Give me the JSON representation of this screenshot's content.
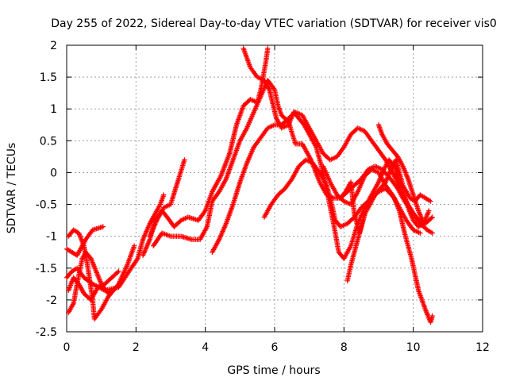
{
  "chart_data": {
    "type": "scatter",
    "title": "Day 255 of 2022, Sidereal Day-to-day VTEC variation (SDTVAR) for receiver vis0",
    "xlabel": "GPS time / hours",
    "ylabel": "SDTVAR / TECUs",
    "xlim": [
      0,
      12
    ],
    "ylim": [
      -2.5,
      2
    ],
    "xticks": [
      "0",
      "2",
      "4",
      "6",
      "8",
      "10",
      "12"
    ],
    "yticks": [
      "-2.5",
      "-2",
      "-1.5",
      "-1",
      "-0.5",
      "0",
      "0.5",
      "1",
      "1.5",
      "2"
    ],
    "grid": true,
    "marker": "+",
    "color": "#ff0000",
    "series": [
      {
        "points": [
          [
            0.0,
            -1.2
          ],
          [
            0.3,
            -1.3
          ],
          [
            0.55,
            -1.05
          ],
          [
            0.75,
            -0.9
          ],
          [
            1.05,
            -0.85
          ]
        ]
      },
      {
        "points": [
          [
            0.0,
            -1.65
          ],
          [
            0.15,
            -1.55
          ],
          [
            0.3,
            -1.5
          ],
          [
            0.5,
            -1.65
          ],
          [
            0.75,
            -1.75
          ],
          [
            1.1,
            -1.85
          ],
          [
            1.5,
            -1.8
          ],
          [
            1.8,
            -1.55
          ],
          [
            2.05,
            -1.35
          ],
          [
            2.2,
            -1.05
          ],
          [
            2.4,
            -0.8
          ],
          [
            2.55,
            -0.65
          ],
          [
            2.7,
            -0.5
          ],
          [
            2.8,
            -0.35
          ]
        ]
      },
      {
        "points": [
          [
            0.05,
            -1.85
          ],
          [
            0.2,
            -1.65
          ],
          [
            0.35,
            -1.75
          ],
          [
            0.5,
            -1.9
          ],
          [
            0.7,
            -2.0
          ],
          [
            0.9,
            -1.8
          ],
          [
            1.1,
            -1.75
          ],
          [
            1.3,
            -1.65
          ],
          [
            1.5,
            -1.55
          ]
        ]
      },
      {
        "points": [
          [
            0.05,
            -2.2
          ],
          [
            0.2,
            -2.05
          ],
          [
            0.3,
            -1.75
          ],
          [
            0.45,
            -1.35
          ],
          [
            0.55,
            -1.25
          ],
          [
            0.7,
            -1.35
          ],
          [
            0.85,
            -1.55
          ],
          [
            1.0,
            -1.75
          ],
          [
            1.2,
            -1.9
          ],
          [
            1.45,
            -1.8
          ]
        ]
      },
      {
        "points": [
          [
            0.05,
            -1.0
          ],
          [
            0.2,
            -0.9
          ],
          [
            0.35,
            -0.95
          ],
          [
            0.5,
            -1.15
          ],
          [
            0.6,
            -1.45
          ],
          [
            0.75,
            -2.0
          ],
          [
            0.8,
            -2.3
          ],
          [
            1.0,
            -2.15
          ],
          [
            1.2,
            -1.95
          ],
          [
            1.5,
            -1.75
          ],
          [
            1.75,
            -1.45
          ],
          [
            1.95,
            -1.15
          ]
        ]
      },
      {
        "points": [
          [
            2.2,
            -1.3
          ],
          [
            2.4,
            -1.05
          ],
          [
            2.55,
            -0.75
          ],
          [
            2.75,
            -0.6
          ],
          [
            2.9,
            -0.7
          ],
          [
            3.1,
            -0.85
          ],
          [
            3.3,
            -0.75
          ],
          [
            3.5,
            -0.7
          ],
          [
            3.8,
            -0.75
          ],
          [
            4.0,
            -0.6
          ],
          [
            4.2,
            -0.3
          ],
          [
            4.45,
            -0.05
          ],
          [
            4.7,
            0.3
          ],
          [
            4.9,
            0.75
          ],
          [
            5.1,
            1.05
          ],
          [
            5.3,
            1.15
          ],
          [
            5.5,
            1.1
          ],
          [
            5.6,
            1.3
          ],
          [
            5.75,
            1.75
          ],
          [
            5.8,
            1.95
          ]
        ]
      },
      {
        "points": [
          [
            2.4,
            -1.0
          ],
          [
            2.6,
            -0.75
          ],
          [
            2.8,
            -0.55
          ],
          [
            3.0,
            -0.5
          ],
          [
            3.2,
            -0.15
          ],
          [
            3.4,
            0.2
          ]
        ]
      },
      {
        "points": [
          [
            2.5,
            -1.15
          ],
          [
            2.75,
            -0.95
          ],
          [
            3.0,
            -1.0
          ],
          [
            3.3,
            -1.0
          ],
          [
            3.6,
            -1.05
          ],
          [
            3.85,
            -1.05
          ],
          [
            4.05,
            -0.85
          ],
          [
            4.2,
            -0.45
          ],
          [
            4.4,
            -0.3
          ],
          [
            4.6,
            -0.1
          ],
          [
            4.8,
            0.2
          ],
          [
            5.0,
            0.5
          ],
          [
            5.2,
            0.7
          ],
          [
            5.4,
            0.95
          ],
          [
            5.6,
            1.2
          ],
          [
            5.8,
            1.45
          ],
          [
            6.0,
            1.3
          ],
          [
            6.1,
            1.05
          ],
          [
            6.2,
            0.9
          ],
          [
            6.4,
            0.8
          ],
          [
            6.6,
            0.45
          ],
          [
            6.8,
            0.45
          ],
          [
            7.05,
            0.2
          ],
          [
            7.3,
            -0.15
          ],
          [
            7.5,
            -0.35
          ],
          [
            7.7,
            -0.4
          ],
          [
            7.9,
            -0.4
          ],
          [
            8.1,
            -0.3
          ],
          [
            8.3,
            -0.2
          ],
          [
            8.5,
            -0.1
          ],
          [
            8.7,
            0.05
          ],
          [
            8.9,
            0.1
          ],
          [
            9.1,
            0.05
          ],
          [
            9.35,
            -0.1
          ],
          [
            9.55,
            -0.25
          ],
          [
            9.75,
            -0.45
          ],
          [
            9.95,
            -0.6
          ],
          [
            10.15,
            -0.75
          ],
          [
            10.35,
            -0.8
          ],
          [
            10.55,
            -0.7
          ]
        ]
      },
      {
        "points": [
          [
            4.2,
            -1.25
          ],
          [
            4.4,
            -1.05
          ],
          [
            4.6,
            -0.8
          ],
          [
            4.8,
            -0.5
          ],
          [
            5.0,
            -0.15
          ],
          [
            5.2,
            0.15
          ],
          [
            5.4,
            0.4
          ],
          [
            5.6,
            0.55
          ],
          [
            5.8,
            0.7
          ],
          [
            6.0,
            0.75
          ],
          [
            6.2,
            0.75
          ],
          [
            6.4,
            0.85
          ],
          [
            6.6,
            0.95
          ],
          [
            6.8,
            0.9
          ],
          [
            7.0,
            0.7
          ],
          [
            7.2,
            0.5
          ],
          [
            7.4,
            0.3
          ],
          [
            7.6,
            0.2
          ],
          [
            7.8,
            0.25
          ],
          [
            8.0,
            0.4
          ],
          [
            8.2,
            0.6
          ],
          [
            8.4,
            0.7
          ],
          [
            8.6,
            0.65
          ],
          [
            8.8,
            0.5
          ],
          [
            9.0,
            0.35
          ],
          [
            9.2,
            0.2
          ],
          [
            9.4,
            0.0
          ],
          [
            9.6,
            -0.2
          ],
          [
            9.8,
            -0.45
          ],
          [
            10.0,
            -0.65
          ],
          [
            10.2,
            -0.8
          ],
          [
            10.4,
            -0.9
          ],
          [
            10.55,
            -0.95
          ]
        ]
      },
      {
        "points": [
          [
            5.1,
            1.95
          ],
          [
            5.3,
            1.65
          ],
          [
            5.5,
            1.5
          ],
          [
            5.7,
            1.45
          ],
          [
            5.85,
            1.3
          ],
          [
            6.05,
            0.85
          ],
          [
            6.2,
            0.7
          ],
          [
            6.4,
            0.75
          ],
          [
            6.55,
            0.95
          ],
          [
            6.7,
            0.85
          ],
          [
            6.85,
            0.75
          ],
          [
            7.0,
            0.6
          ],
          [
            7.2,
            0.4
          ],
          [
            7.35,
            0.1
          ],
          [
            7.55,
            -0.4
          ],
          [
            7.7,
            -0.8
          ],
          [
            7.85,
            -1.25
          ],
          [
            8.0,
            -1.35
          ],
          [
            8.2,
            -1.15
          ],
          [
            8.4,
            -0.8
          ],
          [
            8.6,
            -0.55
          ],
          [
            8.8,
            -0.4
          ],
          [
            9.0,
            -0.3
          ],
          [
            9.2,
            -0.25
          ],
          [
            9.45,
            -0.4
          ],
          [
            9.6,
            -0.6
          ],
          [
            9.75,
            -0.95
          ],
          [
            9.95,
            -1.35
          ],
          [
            10.15,
            -1.85
          ],
          [
            10.35,
            -2.15
          ],
          [
            10.5,
            -2.35
          ],
          [
            10.55,
            -2.25
          ]
        ]
      },
      {
        "points": [
          [
            5.7,
            -0.7
          ],
          [
            5.9,
            -0.5
          ],
          [
            6.1,
            -0.35
          ],
          [
            6.3,
            -0.25
          ],
          [
            6.5,
            -0.1
          ],
          [
            6.7,
            0.1
          ],
          [
            6.9,
            0.2
          ],
          [
            7.1,
            0.15
          ],
          [
            7.3,
            0.0
          ],
          [
            7.5,
            -0.2
          ],
          [
            7.65,
            -0.5
          ],
          [
            7.75,
            -0.75
          ],
          [
            7.9,
            -0.85
          ],
          [
            8.1,
            -0.8
          ],
          [
            8.3,
            -0.7
          ],
          [
            8.5,
            -0.55
          ],
          [
            8.7,
            -0.45
          ],
          [
            8.85,
            -0.3
          ],
          [
            9.0,
            -0.15
          ],
          [
            9.15,
            0.05
          ],
          [
            9.3,
            0.2
          ],
          [
            9.45,
            0.1
          ],
          [
            9.55,
            -0.05
          ],
          [
            9.7,
            -0.3
          ],
          [
            9.85,
            -0.55
          ],
          [
            10.0,
            -0.75
          ],
          [
            10.15,
            -0.85
          ],
          [
            10.3,
            -0.8
          ],
          [
            10.45,
            -0.6
          ]
        ]
      },
      {
        "points": [
          [
            7.4,
            0.1
          ],
          [
            7.6,
            -0.15
          ],
          [
            7.8,
            -0.35
          ],
          [
            8.0,
            -0.45
          ],
          [
            8.2,
            -0.5
          ],
          [
            8.4,
            -0.3
          ],
          [
            8.6,
            -0.05
          ],
          [
            8.8,
            0.05
          ],
          [
            9.0,
            0.0
          ],
          [
            9.2,
            -0.2
          ],
          [
            9.4,
            -0.35
          ],
          [
            9.6,
            -0.55
          ],
          [
            9.8,
            -0.75
          ],
          [
            10.0,
            -0.9
          ],
          [
            10.2,
            -0.95
          ]
        ]
      },
      {
        "points": [
          [
            7.9,
            -0.4
          ],
          [
            8.05,
            -0.3
          ],
          [
            8.2,
            -0.15
          ],
          [
            8.3,
            -0.65
          ],
          [
            8.45,
            -0.95
          ],
          [
            8.6,
            -0.65
          ],
          [
            8.75,
            -0.5
          ],
          [
            8.9,
            -0.35
          ],
          [
            9.05,
            -0.25
          ],
          [
            9.2,
            -0.15
          ],
          [
            9.35,
            0.05
          ],
          [
            9.5,
            0.2
          ],
          [
            9.6,
            0.0
          ],
          [
            9.7,
            -0.2
          ],
          [
            9.9,
            -0.4
          ],
          [
            10.05,
            -0.45
          ],
          [
            10.2,
            -0.35
          ],
          [
            10.35,
            -0.4
          ],
          [
            10.5,
            -0.45
          ]
        ]
      },
      {
        "points": [
          [
            8.1,
            -1.7
          ],
          [
            8.2,
            -1.45
          ],
          [
            8.35,
            -1.15
          ],
          [
            8.5,
            -0.85
          ],
          [
            8.6,
            -0.65
          ]
        ]
      },
      {
        "points": [
          [
            9.0,
            0.75
          ],
          [
            9.1,
            0.6
          ],
          [
            9.25,
            0.45
          ],
          [
            9.4,
            0.35
          ],
          [
            9.55,
            0.25
          ],
          [
            9.7,
            0.1
          ],
          [
            9.85,
            -0.1
          ],
          [
            10.0,
            -0.35
          ],
          [
            10.15,
            -0.6
          ],
          [
            10.3,
            -0.8
          ]
        ]
      }
    ]
  }
}
